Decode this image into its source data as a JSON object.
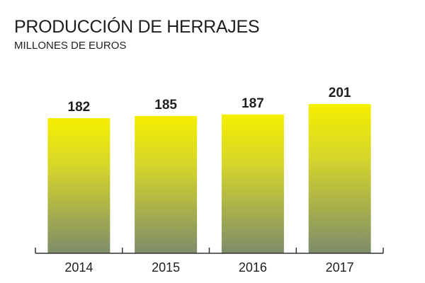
{
  "chart_data": {
    "type": "bar",
    "title": "PRODUCCIÓN DE HERRAJES",
    "subtitle": "MILLONES DE EUROS",
    "xlabel": "",
    "ylabel": "",
    "categories": [
      "2014",
      "2015",
      "2016",
      "2017"
    ],
    "values": [
      182,
      185,
      187,
      201
    ],
    "value_labels": [
      "182",
      "185",
      "187",
      "201"
    ],
    "grid": false,
    "legend": "none",
    "colors": {
      "bar_top": "#f5ef00",
      "bar_bottom": "#7d8c6a",
      "axis": "#333333",
      "text": "#1f1f1f"
    }
  }
}
